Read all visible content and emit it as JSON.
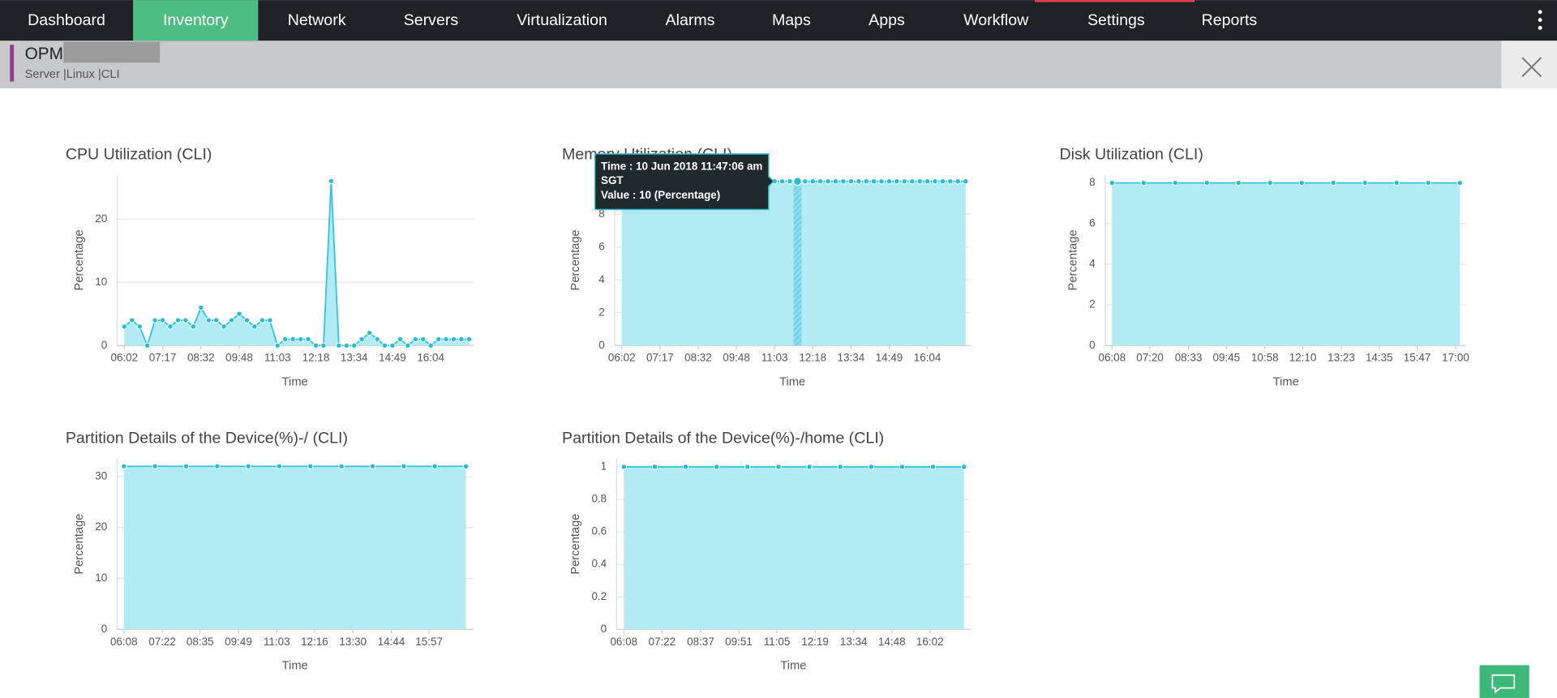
{
  "nav": {
    "items": [
      "Dashboard",
      "Inventory",
      "Network",
      "Servers",
      "Virtualization",
      "Alarms",
      "Maps",
      "Apps",
      "Workflow",
      "Settings",
      "Reports"
    ],
    "active": 1
  },
  "header": {
    "title": "OPM",
    "subtitle": "Server |Linux |CLI"
  },
  "chart_data": [
    {
      "type": "area",
      "title": "CPU Utilization (CLI)",
      "x_label": "Time",
      "y_label": "Percentage",
      "color": "#33c5dc",
      "x": [
        362,
        377,
        392,
        407,
        422,
        437,
        452,
        467,
        482,
        497,
        512,
        527,
        542,
        557,
        572,
        587,
        602,
        617,
        632,
        647,
        662,
        677,
        692,
        707,
        722,
        737,
        752,
        767,
        782,
        797,
        812,
        827,
        842,
        857,
        872,
        887,
        902,
        917,
        932,
        947,
        962,
        977,
        992,
        1007,
        1022,
        1037
      ],
      "values": [
        3,
        4,
        3,
        0,
        4,
        4,
        3,
        4,
        4,
        3,
        6,
        4,
        4,
        3,
        4,
        5,
        4,
        3,
        4,
        4,
        0,
        1,
        1,
        1,
        1,
        0,
        0,
        26,
        0,
        0,
        0,
        1,
        2,
        1,
        0,
        0,
        1,
        0,
        1,
        1,
        0,
        1,
        1,
        1,
        1,
        1
      ],
      "xlim": [
        348,
        1046
      ],
      "ylim": [
        0,
        27
      ],
      "yticks": [
        0,
        10,
        20
      ],
      "xticks": [
        {
          "value": 362,
          "label": "06:02"
        },
        {
          "value": 437,
          "label": "07:17"
        },
        {
          "value": 512,
          "label": "08:32"
        },
        {
          "value": 587,
          "label": "09:48"
        },
        {
          "value": 662,
          "label": "11:03"
        },
        {
          "value": 737,
          "label": "12:18"
        },
        {
          "value": 812,
          "label": "13:34"
        },
        {
          "value": 887,
          "label": "14:49"
        },
        {
          "value": 962,
          "label": "16:04"
        }
      ],
      "grid": true
    },
    {
      "type": "area",
      "title": "Memory Utilization (CLI)",
      "x_label": "Time",
      "y_label": "Percentage",
      "color": "#33c5dc",
      "x": [
        362,
        377,
        392,
        407,
        422,
        437,
        452,
        467,
        482,
        497,
        512,
        527,
        542,
        557,
        572,
        587,
        602,
        617,
        632,
        647,
        662,
        677,
        692,
        707,
        722,
        737,
        752,
        767,
        782,
        797,
        812,
        827,
        842,
        857,
        872,
        887,
        902,
        917,
        932,
        947,
        962,
        977,
        992,
        1007,
        1022,
        1037
      ],
      "values": [
        10,
        10,
        10,
        10,
        10,
        10,
        10,
        10,
        10,
        10,
        10,
        10,
        10,
        10,
        10,
        10,
        10,
        10,
        10,
        10,
        10,
        10,
        10,
        10,
        10,
        10,
        10,
        10,
        10,
        10,
        10,
        10,
        10,
        10,
        10,
        10,
        10,
        10,
        10,
        10,
        10,
        10,
        10,
        10,
        10,
        10
      ],
      "xlim": [
        348,
        1046
      ],
      "ylim": [
        0,
        10.4
      ],
      "yticks": [
        0,
        2,
        4,
        6,
        8
      ],
      "xticks": [
        {
          "value": 362,
          "label": "06:02"
        },
        {
          "value": 437,
          "label": "07:17"
        },
        {
          "value": 512,
          "label": "08:32"
        },
        {
          "value": 587,
          "label": "09:48"
        },
        {
          "value": 662,
          "label": "11:03"
        },
        {
          "value": 737,
          "label": "12:18"
        },
        {
          "value": 812,
          "label": "13:34"
        },
        {
          "value": 887,
          "label": "14:49"
        },
        {
          "value": 962,
          "label": "16:04"
        }
      ],
      "grid": true,
      "tooltip": {
        "hover_index": 23,
        "lines": [
          "Time : 10 Jun 2018 11:47:06 am",
          "SGT",
          "Value : 10 (Percentage)"
        ]
      }
    },
    {
      "type": "area",
      "title": "Disk Utilization (CLI)",
      "x_label": "Time",
      "y_label": "Percentage",
      "color": "#33c5dc",
      "x": [
        368,
        428,
        488,
        548,
        608,
        668,
        728,
        788,
        848,
        908,
        968,
        1028
      ],
      "values": [
        8,
        8,
        8,
        8,
        8,
        8,
        8,
        8,
        8,
        8,
        8,
        8
      ],
      "xlim": [
        355,
        1039
      ],
      "ylim": [
        0,
        8.4
      ],
      "yticks": [
        0,
        2,
        4,
        6,
        8
      ],
      "xticks": [
        {
          "value": 368,
          "label": "06:08"
        },
        {
          "value": 440,
          "label": "07:20"
        },
        {
          "value": 513,
          "label": "08:33"
        },
        {
          "value": 585,
          "label": "09:45"
        },
        {
          "value": 658,
          "label": "10:58"
        },
        {
          "value": 730,
          "label": "12:10"
        },
        {
          "value": 803,
          "label": "13:23"
        },
        {
          "value": 875,
          "label": "14:35"
        },
        {
          "value": 947,
          "label": "15:47"
        },
        {
          "value": 1020,
          "label": "17:00"
        }
      ],
      "grid": true
    },
    {
      "type": "area",
      "title": "Partition Details of the Device(%)-/ (CLI)",
      "x_label": "Time",
      "y_label": "Percentage",
      "color": "#33c5dc",
      "x": [
        368,
        428,
        488,
        548,
        608,
        668,
        728,
        788,
        848,
        908,
        968,
        1028
      ],
      "values": [
        32,
        32,
        32,
        32,
        32,
        32,
        32,
        32,
        32,
        32,
        32,
        32
      ],
      "xlim": [
        355,
        1043
      ],
      "ylim": [
        0,
        33.5
      ],
      "yticks": [
        0,
        10,
        20,
        30
      ],
      "xticks": [
        {
          "value": 368,
          "label": "06:08"
        },
        {
          "value": 442,
          "label": "07:22"
        },
        {
          "value": 515,
          "label": "08:35"
        },
        {
          "value": 589,
          "label": "09:49"
        },
        {
          "value": 663,
          "label": "11:03"
        },
        {
          "value": 736,
          "label": "12:16"
        },
        {
          "value": 810,
          "label": "13:30"
        },
        {
          "value": 884,
          "label": "14:44"
        },
        {
          "value": 957,
          "label": "15:57"
        }
      ],
      "grid": true
    },
    {
      "type": "area",
      "title": "Partition Details of the Device(%)-/home (CLI)",
      "x_label": "Time",
      "y_label": "Percentage",
      "color": "#33c5dc",
      "x": [
        368,
        428,
        488,
        548,
        608,
        668,
        728,
        788,
        848,
        908,
        968,
        1028
      ],
      "values": [
        1,
        1,
        1,
        1,
        1,
        1,
        1,
        1,
        1,
        1,
        1,
        1
      ],
      "xlim": [
        354,
        1040
      ],
      "ylim": [
        0,
        1.05
      ],
      "yticks": [
        0,
        0.2,
        0.4,
        0.6,
        0.8,
        1
      ],
      "xticks": [
        {
          "value": 368,
          "label": "06:08"
        },
        {
          "value": 442,
          "label": "07:22"
        },
        {
          "value": 517,
          "label": "08:37"
        },
        {
          "value": 591,
          "label": "09:51"
        },
        {
          "value": 665,
          "label": "11:05"
        },
        {
          "value": 739,
          "label": "12:19"
        },
        {
          "value": 814,
          "label": "13:34"
        },
        {
          "value": 888,
          "label": "14:48"
        },
        {
          "value": 962,
          "label": "16:02"
        }
      ],
      "grid": true
    }
  ]
}
